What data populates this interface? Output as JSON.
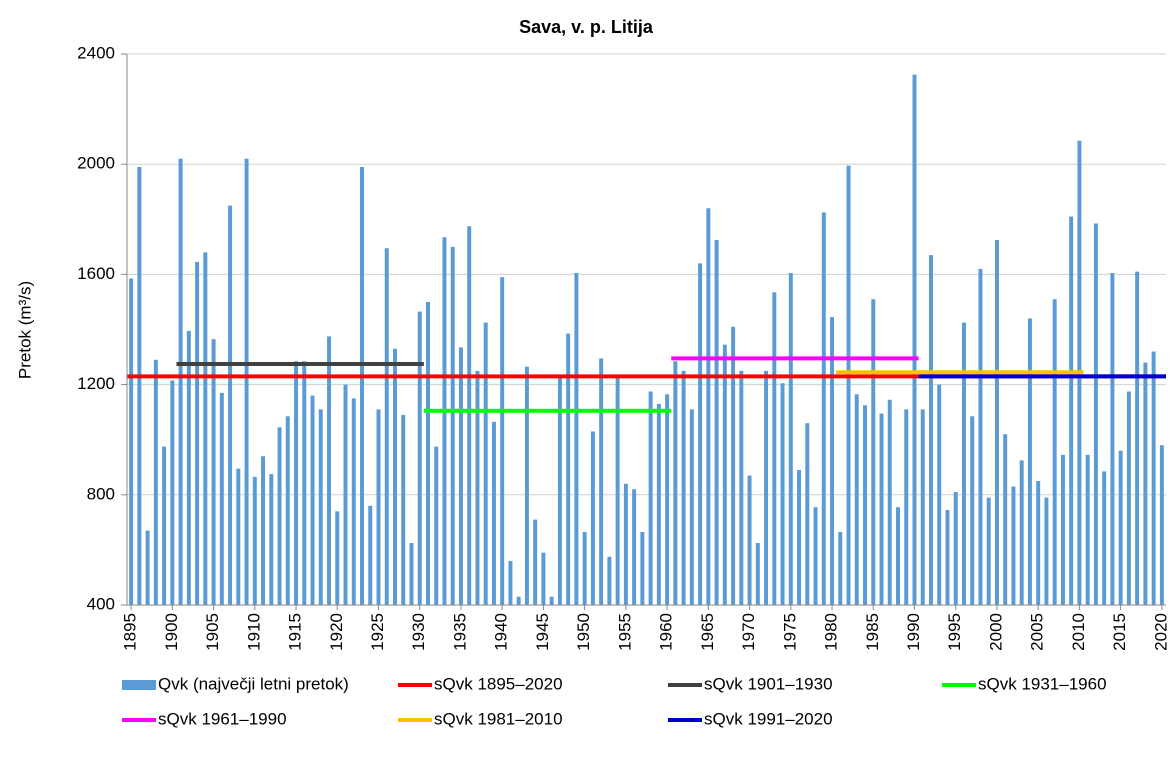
{
  "chart_data": {
    "type": "bar",
    "title": "Sava, v. p. Litija",
    "y_label": "Pretok (m³/s)",
    "xlim": [
      1894.5,
      2020.5
    ],
    "xticks": [
      1895,
      1900,
      1905,
      1910,
      1915,
      1920,
      1925,
      1930,
      1935,
      1940,
      1945,
      1950,
      1955,
      1960,
      1965,
      1970,
      1975,
      1980,
      1985,
      1990,
      1995,
      2000,
      2005,
      2010,
      2015,
      2020
    ],
    "ylim": [
      400,
      2400
    ],
    "yticks": [
      400,
      800,
      1200,
      1600,
      2000,
      2400
    ],
    "grid": true,
    "series": [
      {
        "type": "bar",
        "name": "Qvk (največji letni pretok)",
        "color": "#5b9bd5",
        "x": [
          1895,
          1896,
          1897,
          1898,
          1899,
          1900,
          1901,
          1902,
          1903,
          1904,
          1905,
          1906,
          1907,
          1908,
          1909,
          1910,
          1911,
          1912,
          1913,
          1914,
          1915,
          1916,
          1917,
          1918,
          1919,
          1920,
          1921,
          1922,
          1923,
          1924,
          1925,
          1926,
          1927,
          1928,
          1929,
          1930,
          1931,
          1932,
          1933,
          1934,
          1935,
          1936,
          1937,
          1938,
          1939,
          1940,
          1941,
          1942,
          1943,
          1944,
          1945,
          1946,
          1947,
          1948,
          1949,
          1950,
          1951,
          1952,
          1953,
          1954,
          1955,
          1956,
          1957,
          1958,
          1959,
          1960,
          1961,
          1962,
          1963,
          1964,
          1965,
          1966,
          1967,
          1968,
          1969,
          1970,
          1971,
          1972,
          1973,
          1974,
          1975,
          1976,
          1977,
          1978,
          1979,
          1980,
          1981,
          1982,
          1983,
          1984,
          1985,
          1986,
          1987,
          1988,
          1989,
          1990,
          1991,
          1992,
          1993,
          1994,
          1995,
          1996,
          1997,
          1998,
          1999,
          2000,
          2001,
          2002,
          2003,
          2004,
          2005,
          2006,
          2007,
          2008,
          2009,
          2010,
          2011,
          2012,
          2013,
          2014,
          2015,
          2016,
          2017,
          2018,
          2019,
          2020
        ],
        "values": [
          1585,
          1990,
          670,
          1290,
          975,
          1215,
          2020,
          1395,
          1645,
          1680,
          1365,
          1170,
          1850,
          895,
          2020,
          865,
          940,
          875,
          1045,
          1085,
          1285,
          1285,
          1160,
          1110,
          1375,
          740,
          1200,
          1150,
          1990,
          760,
          1110,
          1695,
          1330,
          1090,
          625,
          1465,
          1500,
          975,
          1735,
          1700,
          1335,
          1775,
          1250,
          1425,
          1065,
          1590,
          560,
          430,
          1265,
          710,
          590,
          430,
          1225,
          1385,
          1605,
          665,
          1030,
          1295,
          575,
          1225,
          840,
          820,
          665,
          1175,
          1130,
          1165,
          1285,
          1250,
          1110,
          1640,
          1840,
          1725,
          1345,
          1410,
          1250,
          870,
          625,
          1250,
          1535,
          1205,
          1605,
          890,
          1060,
          755,
          1825,
          1445,
          665,
          1995,
          1165,
          1125,
          1510,
          1095,
          1145,
          755,
          1110,
          2325,
          1110,
          1670,
          1200,
          745,
          810,
          1425,
          1085,
          1620,
          790,
          1725,
          1020,
          830,
          925,
          1440,
          850,
          790,
          1510,
          945,
          1810,
          2085,
          945,
          1785,
          885,
          1605,
          960,
          1175,
          1610,
          1280,
          1320,
          980
        ]
      },
      {
        "type": "line",
        "name": "sQvk 1895–2020",
        "color": "#ff0000",
        "x": [
          1895,
          2020
        ],
        "values": [
          1230,
          1230
        ]
      },
      {
        "type": "line",
        "name": "sQvk 1901–1930",
        "color": "#404040",
        "x": [
          1901,
          1930
        ],
        "values": [
          1275,
          1275
        ]
      },
      {
        "type": "line",
        "name": "sQvk 1931–1960",
        "color": "#00ff00",
        "x": [
          1931,
          1960
        ],
        "values": [
          1105,
          1105
        ]
      },
      {
        "type": "line",
        "name": "sQvk 1961–1990",
        "color": "#ff00ff",
        "x": [
          1961,
          1990
        ],
        "values": [
          1295,
          1295
        ]
      },
      {
        "type": "line",
        "name": "sQvk 1981–2010",
        "color": "#ffc000",
        "x": [
          1981,
          2010
        ],
        "values": [
          1245,
          1245
        ]
      },
      {
        "type": "line",
        "name": "sQvk 1991–2020",
        "color": "#0000cc",
        "x": [
          1991,
          2020
        ],
        "values": [
          1230,
          1230
        ]
      }
    ]
  }
}
